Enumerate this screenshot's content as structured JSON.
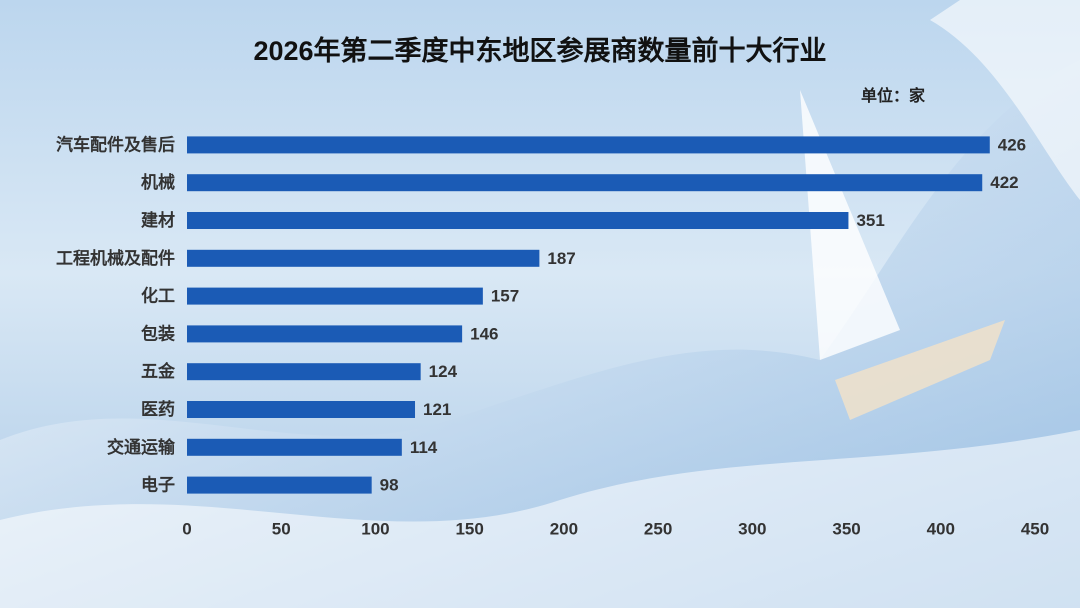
{
  "chart_data": {
    "type": "bar",
    "orientation": "horizontal",
    "title": "2026年第二季度中东地区参展商数量前十大行业",
    "unit": "单位：家",
    "categories": [
      "汽车配件及售后",
      "机械",
      "建材",
      "工程机械及配件",
      "化工",
      "包装",
      "五金",
      "医药",
      "交通运输",
      "电子"
    ],
    "values": [
      426,
      422,
      351,
      187,
      157,
      146,
      124,
      121,
      114,
      98
    ],
    "color": "#1b5bb5",
    "xlim": [
      0,
      450
    ],
    "xticks": [
      0,
      50,
      100,
      150,
      200,
      250,
      300,
      350,
      400,
      450
    ],
    "grid": false
  }
}
